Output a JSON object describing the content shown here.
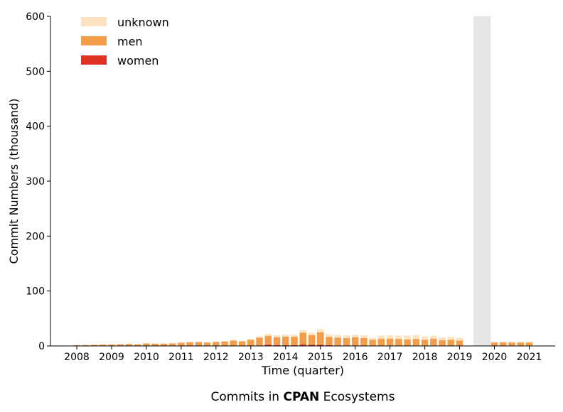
{
  "chart_data": {
    "type": "bar",
    "stacked": true,
    "title_prefix": "Commits in ",
    "title_bold": "CPAN",
    "title_suffix": " Ecosystems",
    "xlabel": "Time (quarter)",
    "ylabel": "Commit Numbers (thousand)",
    "ylim": [
      0,
      600
    ],
    "yticks": [
      0,
      100,
      200,
      300,
      400,
      500,
      600
    ],
    "xticks": [
      {
        "label": "2008",
        "index": 0
      },
      {
        "label": "2009",
        "index": 4
      },
      {
        "label": "2010",
        "index": 8
      },
      {
        "label": "2011",
        "index": 12
      },
      {
        "label": "2012",
        "index": 16
      },
      {
        "label": "2013",
        "index": 20
      },
      {
        "label": "2014",
        "index": 24
      },
      {
        "label": "2015",
        "index": 28
      },
      {
        "label": "2016",
        "index": 32
      },
      {
        "label": "2017",
        "index": 36
      },
      {
        "label": "2018",
        "index": 40
      },
      {
        "label": "2019",
        "index": 44
      },
      {
        "label": "2020",
        "index": 48
      },
      {
        "label": "2021",
        "index": 52
      }
    ],
    "quarters": [
      "2008Q1",
      "2008Q2",
      "2008Q3",
      "2008Q4",
      "2009Q1",
      "2009Q2",
      "2009Q3",
      "2009Q4",
      "2010Q1",
      "2010Q2",
      "2010Q3",
      "2010Q4",
      "2011Q1",
      "2011Q2",
      "2011Q3",
      "2011Q4",
      "2012Q1",
      "2012Q2",
      "2012Q3",
      "2012Q4",
      "2013Q1",
      "2013Q2",
      "2013Q3",
      "2013Q4",
      "2014Q1",
      "2014Q2",
      "2014Q3",
      "2014Q4",
      "2015Q1",
      "2015Q2",
      "2015Q3",
      "2015Q4",
      "2016Q1",
      "2016Q2",
      "2016Q3",
      "2016Q4",
      "2017Q1",
      "2017Q2",
      "2017Q3",
      "2017Q4",
      "2018Q1",
      "2018Q2",
      "2018Q3",
      "2018Q4",
      "2019Q1",
      "2019Q2",
      "2019Q3",
      "2019Q4",
      "2020Q1",
      "2020Q2",
      "2020Q3",
      "2020Q4",
      "2021Q1",
      "2021Q2"
    ],
    "series": [
      {
        "name": "women",
        "color": "#e03127",
        "values": [
          0.1,
          0.1,
          0.1,
          0.1,
          0.1,
          0.1,
          0.1,
          0.1,
          0.1,
          0.1,
          0.1,
          0.1,
          0.2,
          0.2,
          0.2,
          0.2,
          0.3,
          0.3,
          0.3,
          0.3,
          0.5,
          1.0,
          2.0,
          1.5,
          1.5,
          1.5,
          2.5,
          2.0,
          2.0,
          1.5,
          1.0,
          1.0,
          1.0,
          1.0,
          0.8,
          0.8,
          0.8,
          0.8,
          0.8,
          0.8,
          0.8,
          0.8,
          0.8,
          0.8,
          0.8,
          0,
          0,
          0,
          0.3,
          0.3,
          0.3,
          0.3,
          0.3,
          0
        ]
      },
      {
        "name": "men",
        "color": "#f39c4a",
        "values": [
          1.5,
          1.8,
          2.0,
          2.5,
          2.7,
          3.0,
          3.5,
          3.0,
          4.5,
          4.0,
          4.0,
          4.5,
          5.5,
          6.5,
          6.8,
          6.0,
          7.0,
          7.5,
          9.5,
          8.0,
          10.5,
          14.0,
          16.5,
          14.5,
          15.5,
          15.5,
          21.5,
          17.5,
          23.0,
          15.0,
          14.0,
          13.5,
          14.5,
          13.5,
          10.5,
          12.0,
          12.5,
          12.0,
          11.0,
          12.0,
          10.5,
          12.5,
          9.5,
          10.5,
          9.0,
          0,
          0,
          0,
          6.0,
          6.2,
          6.0,
          6.0,
          6.0,
          0
        ]
      },
      {
        "name": "unknown",
        "color": "#fde3c1",
        "values": [
          0.2,
          0.2,
          0.3,
          0.3,
          0.3,
          0.4,
          0.4,
          0.4,
          0.5,
          0.5,
          0.5,
          0.6,
          0.7,
          0.8,
          0.8,
          0.8,
          0.9,
          1.0,
          1.2,
          1.2,
          1.5,
          2.5,
          3.5,
          3.5,
          3.5,
          3.5,
          5.0,
          4.5,
          6.0,
          5.0,
          5.0,
          5.0,
          5.0,
          5.0,
          4.0,
          6.0,
          6.0,
          6.0,
          7.0,
          7.0,
          6.0,
          5.5,
          5.0,
          5.0,
          5.0,
          0,
          0,
          0,
          0.9,
          0.9,
          0.9,
          0.9,
          0.9,
          0
        ]
      }
    ],
    "missing_span": {
      "start": "2019Q3",
      "end": "2019Q4"
    },
    "legend_position": "top-left",
    "grid": false
  }
}
